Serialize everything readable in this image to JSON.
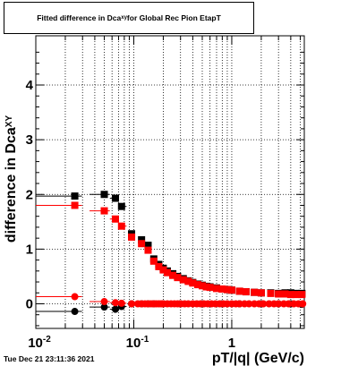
{
  "title_main": "Fitted difference in Dca",
  "title_sub": "xy",
  "title_tail": " for Global Rec Pion EtapT",
  "timestamp": "Tue Dec 21 23:11:36 2021",
  "chart_data": {
    "type": "scatter",
    "title": "Fitted difference in Dca_xy for Global Rec Pion EtapT",
    "xlabel": "pT/|q| (GeV/c)",
    "ylabel": "difference in Dca_XY",
    "xscale": "log",
    "xlim": [
      0.01,
      5.5
    ],
    "ylim": [
      -0.45,
      4.9
    ],
    "grid": true,
    "x_tick_labels": [
      "10^-2",
      "10^-1",
      "1"
    ],
    "y_tick_labels": [
      "0",
      "1",
      "2",
      "3",
      "4"
    ],
    "series": [
      {
        "marker": "square",
        "color": "#000000",
        "points": [
          [
            0.025,
            1.97
          ],
          [
            0.05,
            2.0
          ],
          [
            0.065,
            1.93
          ],
          [
            0.075,
            1.78
          ],
          [
            0.095,
            1.28
          ],
          [
            0.12,
            1.17
          ],
          [
            0.14,
            1.07
          ],
          [
            0.16,
            0.82
          ],
          [
            0.18,
            0.72
          ],
          [
            0.2,
            0.65
          ],
          [
            0.22,
            0.6
          ],
          [
            0.25,
            0.55
          ],
          [
            0.28,
            0.5
          ],
          [
            0.32,
            0.46
          ],
          [
            0.36,
            0.42
          ],
          [
            0.4,
            0.39
          ],
          [
            0.45,
            0.36
          ],
          [
            0.5,
            0.34
          ],
          [
            0.55,
            0.32
          ],
          [
            0.6,
            0.31
          ],
          [
            0.7,
            0.29
          ],
          [
            0.8,
            0.27
          ],
          [
            0.9,
            0.26
          ],
          [
            1.0,
            0.25
          ],
          [
            1.2,
            0.23
          ],
          [
            1.4,
            0.22
          ],
          [
            1.7,
            0.21
          ],
          [
            2.0,
            0.2
          ],
          [
            2.5,
            0.2
          ],
          [
            3.0,
            0.19
          ],
          [
            3.5,
            0.2
          ],
          [
            4.0,
            0.2
          ],
          [
            4.5,
            0.19
          ],
          [
            5.2,
            0.19
          ]
        ]
      },
      {
        "marker": "square",
        "color": "#ff0000",
        "points": [
          [
            0.025,
            1.8
          ],
          [
            0.05,
            1.7
          ],
          [
            0.065,
            1.55
          ],
          [
            0.075,
            1.42
          ],
          [
            0.095,
            1.22
          ],
          [
            0.12,
            1.1
          ],
          [
            0.14,
            0.98
          ],
          [
            0.16,
            0.78
          ],
          [
            0.18,
            0.68
          ],
          [
            0.2,
            0.62
          ],
          [
            0.22,
            0.57
          ],
          [
            0.25,
            0.52
          ],
          [
            0.28,
            0.48
          ],
          [
            0.32,
            0.44
          ],
          [
            0.36,
            0.41
          ],
          [
            0.4,
            0.38
          ],
          [
            0.45,
            0.35
          ],
          [
            0.5,
            0.33
          ],
          [
            0.55,
            0.31
          ],
          [
            0.6,
            0.3
          ],
          [
            0.7,
            0.28
          ],
          [
            0.8,
            0.27
          ],
          [
            0.9,
            0.26
          ],
          [
            1.0,
            0.25
          ],
          [
            1.2,
            0.23
          ],
          [
            1.4,
            0.22
          ],
          [
            1.7,
            0.21
          ],
          [
            2.0,
            0.2
          ],
          [
            2.5,
            0.19
          ],
          [
            3.0,
            0.18
          ],
          [
            3.5,
            0.18
          ],
          [
            4.0,
            0.17
          ],
          [
            4.5,
            0.17
          ],
          [
            5.2,
            0.17
          ]
        ]
      },
      {
        "marker": "circle",
        "color": "#000000",
        "points": [
          [
            0.025,
            -0.14
          ],
          [
            0.05,
            -0.06
          ],
          [
            0.065,
            -0.1
          ],
          [
            0.075,
            -0.05
          ],
          [
            0.095,
            0.0
          ],
          [
            0.12,
            0.0
          ],
          [
            0.14,
            0.0
          ],
          [
            0.16,
            0.0
          ],
          [
            0.2,
            0.0
          ],
          [
            0.3,
            0.0
          ],
          [
            0.5,
            0.0
          ],
          [
            0.8,
            0.0
          ],
          [
            1.2,
            0.0
          ],
          [
            2.0,
            0.0
          ],
          [
            3.0,
            0.0
          ],
          [
            4.0,
            0.0
          ],
          [
            5.2,
            -0.01
          ]
        ]
      },
      {
        "marker": "circle",
        "color": "#ff0000",
        "points": [
          [
            0.025,
            0.13
          ],
          [
            0.05,
            0.04
          ],
          [
            0.065,
            0.02
          ],
          [
            0.075,
            0.01
          ],
          [
            0.095,
            0.0
          ],
          [
            0.11,
            0.0
          ],
          [
            0.12,
            0.0
          ],
          [
            0.13,
            0.0
          ],
          [
            0.14,
            0.0
          ],
          [
            0.15,
            0.0
          ],
          [
            0.16,
            0.0
          ],
          [
            0.17,
            0.0
          ],
          [
            0.18,
            0.0
          ],
          [
            0.19,
            0.0
          ],
          [
            0.2,
            0.0
          ],
          [
            0.22,
            0.0
          ],
          [
            0.24,
            0.0
          ],
          [
            0.26,
            0.0
          ],
          [
            0.28,
            0.0
          ],
          [
            0.3,
            0.0
          ],
          [
            0.33,
            0.0
          ],
          [
            0.36,
            0.0
          ],
          [
            0.4,
            0.0
          ],
          [
            0.44,
            0.0
          ],
          [
            0.48,
            0.0
          ],
          [
            0.52,
            0.0
          ],
          [
            0.57,
            0.0
          ],
          [
            0.62,
            0.0
          ],
          [
            0.68,
            0.0
          ],
          [
            0.75,
            0.0
          ],
          [
            0.82,
            0.0
          ],
          [
            0.9,
            0.0
          ],
          [
            1.0,
            0.0
          ],
          [
            1.1,
            0.0
          ],
          [
            1.2,
            0.0
          ],
          [
            1.35,
            0.0
          ],
          [
            1.5,
            0.0
          ],
          [
            1.7,
            0.0
          ],
          [
            1.9,
            0.0
          ],
          [
            2.1,
            0.0
          ],
          [
            2.4,
            0.0
          ],
          [
            2.7,
            0.0
          ],
          [
            3.0,
            0.0
          ],
          [
            3.4,
            0.0
          ],
          [
            3.8,
            0.0
          ],
          [
            4.3,
            0.0
          ],
          [
            4.8,
            0.0
          ],
          [
            5.3,
            0.0
          ]
        ]
      }
    ]
  }
}
